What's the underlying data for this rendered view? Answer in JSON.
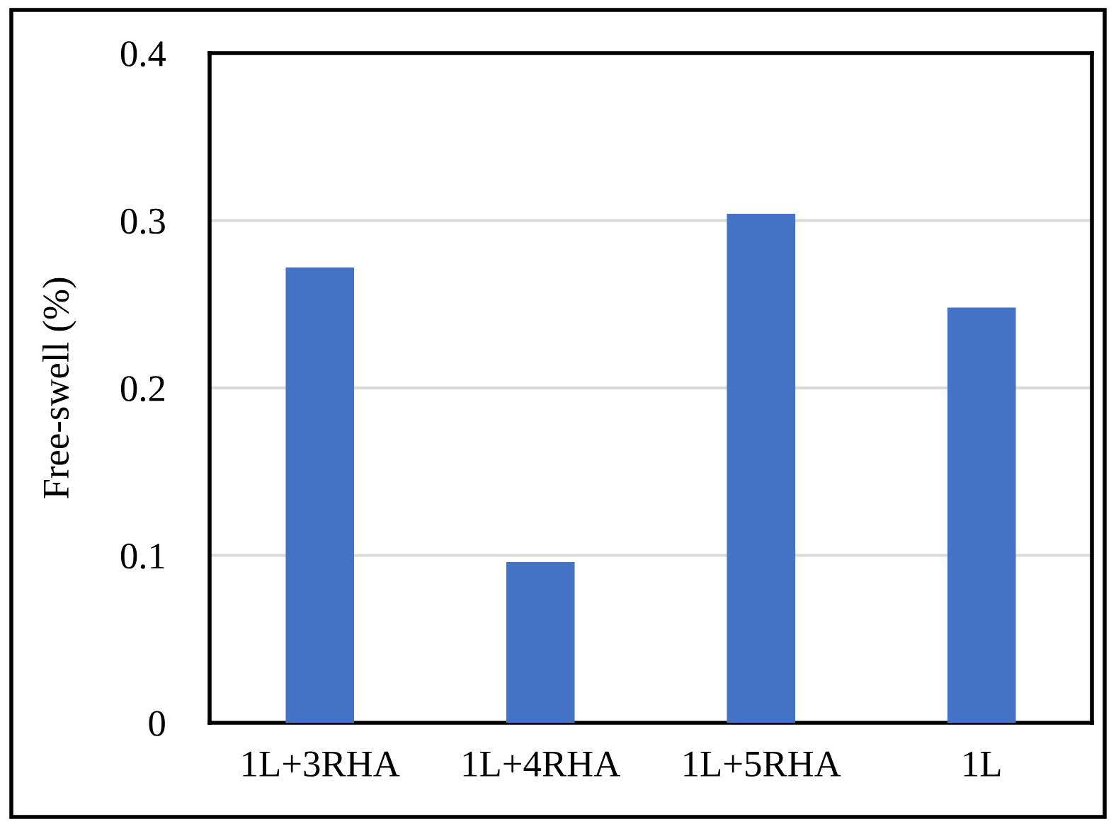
{
  "chart_data": {
    "type": "bar",
    "ylabel": "Free-swell (%)",
    "categories": [
      "1L+3RHA",
      "1L+4RHA",
      "1L+5RHA",
      "1L"
    ],
    "values": [
      0.272,
      0.096,
      0.304,
      0.248
    ],
    "color": "#4472c4",
    "ylim": [
      0,
      0.4
    ],
    "yticks": [
      0,
      0.1,
      0.2,
      0.3,
      0.4
    ],
    "grid": "y",
    "legend": false
  }
}
